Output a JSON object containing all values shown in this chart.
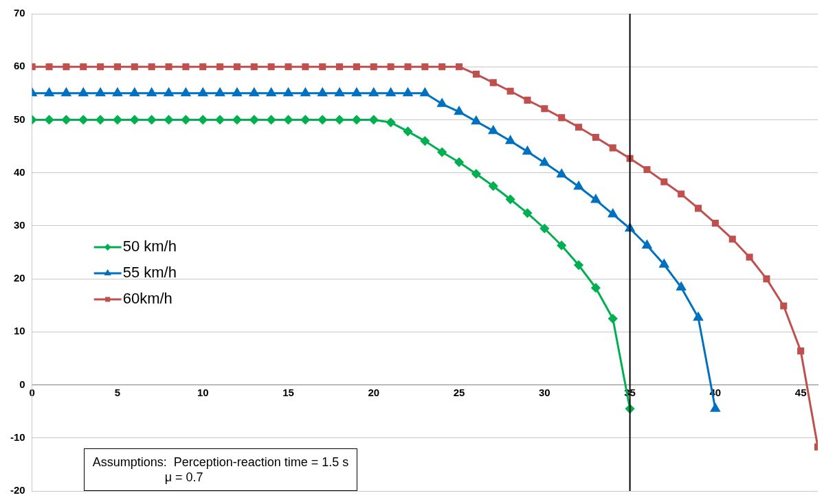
{
  "chart_data": {
    "type": "line",
    "x": [
      0,
      1,
      2,
      3,
      4,
      5,
      6,
      7,
      8,
      9,
      10,
      11,
      12,
      13,
      14,
      15,
      16,
      17,
      18,
      19,
      20,
      21,
      22,
      23,
      24,
      25,
      26,
      27,
      28,
      29,
      30,
      31,
      32,
      33,
      34,
      35,
      36,
      37,
      38,
      39,
      40,
      41,
      42,
      43,
      44,
      45,
      46
    ],
    "series": [
      {
        "name": "50 km/h",
        "color": "#00b050",
        "marker": "diamond",
        "values": [
          50,
          50,
          50,
          50,
          50,
          50,
          50,
          50,
          50,
          50,
          50,
          50,
          50,
          50,
          50,
          50,
          50,
          50,
          50,
          50,
          50,
          49.5,
          47.8,
          46,
          43.9,
          42,
          39.8,
          37.5,
          35,
          32.4,
          29.5,
          26.3,
          22.6,
          18.3,
          12.5,
          -4.5,
          null,
          null,
          null,
          null,
          null,
          null,
          null,
          null,
          null,
          null,
          null
        ]
      },
      {
        "name": "55 km/h",
        "color": "#0070c0",
        "marker": "triangle",
        "values": [
          55,
          55,
          55,
          55,
          55,
          55,
          55,
          55,
          55,
          55,
          55,
          55,
          55,
          55,
          55,
          55,
          55,
          55,
          55,
          55,
          55,
          55,
          55,
          55,
          53,
          51.5,
          49.7,
          47.9,
          46,
          44,
          41.9,
          39.7,
          37.4,
          34.9,
          32.2,
          29.5,
          26.3,
          22.7,
          18.4,
          12.7,
          -4.5,
          null,
          null,
          null,
          null,
          null,
          null
        ]
      },
      {
        "name": "60km/h",
        "color": "#c0504d",
        "marker": "square",
        "values": [
          60,
          60,
          60,
          60,
          60,
          60,
          60,
          60,
          60,
          60,
          60,
          60,
          60,
          60,
          60,
          60,
          60,
          60,
          60,
          60,
          60,
          60,
          60,
          60,
          60,
          60,
          58.6,
          57,
          55.4,
          53.7,
          52.1,
          50.4,
          48.6,
          46.7,
          44.7,
          42.7,
          40.6,
          38.3,
          36,
          33.3,
          30.5,
          27.5,
          24.1,
          20,
          14.9,
          6.4,
          -11.7
        ]
      }
    ],
    "xlim": [
      0,
      46
    ],
    "xticks": [
      0,
      5,
      10,
      15,
      20,
      25,
      30,
      35,
      40,
      45
    ],
    "ylim": [
      -20,
      70
    ],
    "yticks": [
      -20,
      -10,
      0,
      10,
      20,
      30,
      40,
      50,
      60,
      70
    ],
    "grid": "y",
    "legend": "center left",
    "line_style": "solid",
    "ref_lines": [
      {
        "axis": "x",
        "value": 35,
        "color": "#000000"
      }
    ],
    "annotations": [
      "Assumptions:  Perception-reaction time = 1.5 s\n                     μ = 0.7"
    ]
  }
}
